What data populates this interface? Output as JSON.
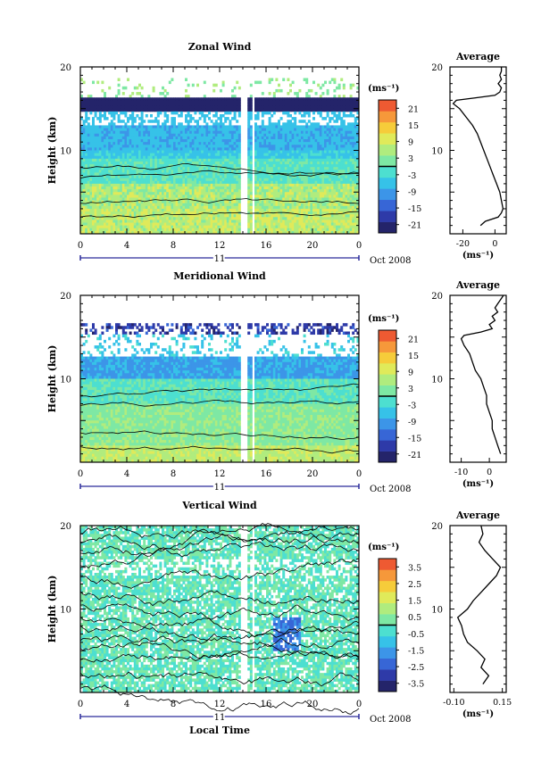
{
  "chart_data": [
    {
      "type": "heatmap",
      "title": "Zonal Wind",
      "ylabel": "Height (km)",
      "yticks": [
        "20",
        "10"
      ],
      "ylim": [
        0,
        20
      ],
      "xticks": [
        "0",
        "4",
        "8",
        "12",
        "16",
        "20",
        "0"
      ],
      "xlim": [
        0,
        24
      ],
      "date_center": "11",
      "date_label": "Oct 2008",
      "colorbar": {
        "unit": "(ms⁻¹)",
        "ticks": [
          "21",
          "15",
          "9",
          "3",
          "-3",
          "-9",
          "-15",
          "-21"
        ],
        "range": [
          -24,
          24
        ]
      },
      "profile": {
        "title": "Average",
        "unit": "(ms⁻¹)",
        "xticks": [
          "-20",
          "0"
        ],
        "xlim": [
          -28,
          7
        ],
        "yticks": [
          "20",
          "10"
        ],
        "points": [
          [
            -9,
            1.0
          ],
          [
            -6,
            1.5
          ],
          [
            2,
            2
          ],
          [
            4,
            2.5
          ],
          [
            5,
            3
          ],
          [
            4,
            4
          ],
          [
            3,
            5
          ],
          [
            1,
            6
          ],
          [
            -1,
            7
          ],
          [
            -3,
            8
          ],
          [
            -5,
            9
          ],
          [
            -7,
            10
          ],
          [
            -9,
            11
          ],
          [
            -11,
            12
          ],
          [
            -14,
            13
          ],
          [
            -18,
            14
          ],
          [
            -22,
            15
          ],
          [
            -26,
            15.6
          ],
          [
            -24,
            16
          ],
          [
            -12,
            16.3
          ],
          [
            0,
            16.6
          ],
          [
            3,
            17
          ],
          [
            4,
            17.5
          ],
          [
            2,
            18
          ],
          [
            4,
            18.5
          ],
          [
            3,
            19
          ],
          [
            4,
            19.5
          ],
          [
            4,
            20
          ]
        ]
      }
    },
    {
      "type": "heatmap",
      "title": "Meridional Wind",
      "ylabel": "Height (km)",
      "yticks": [
        "20",
        "10"
      ],
      "ylim": [
        0,
        20
      ],
      "xticks": [
        "0",
        "4",
        "8",
        "12",
        "16",
        "20",
        "0"
      ],
      "xlim": [
        0,
        24
      ],
      "date_center": "11",
      "date_label": "Oct 2008",
      "colorbar": {
        "unit": "(ms⁻¹)",
        "ticks": [
          "21",
          "15",
          "9",
          "3",
          "-3",
          "-9",
          "-15",
          "-21"
        ],
        "range": [
          -24,
          24
        ]
      },
      "profile": {
        "title": "Average",
        "unit": "(ms⁻¹)",
        "xticks": [
          "-10",
          "0"
        ],
        "xlim": [
          -14,
          6
        ],
        "yticks": [
          "20",
          "10"
        ],
        "points": [
          [
            4,
            1
          ],
          [
            3,
            2
          ],
          [
            2,
            3
          ],
          [
            1,
            4
          ],
          [
            1,
            5
          ],
          [
            0,
            6
          ],
          [
            -1,
            7
          ],
          [
            -1,
            8
          ],
          [
            -2,
            9
          ],
          [
            -3,
            10
          ],
          [
            -5,
            11
          ],
          [
            -6,
            12
          ],
          [
            -7,
            13
          ],
          [
            -9,
            14
          ],
          [
            -10,
            14.8
          ],
          [
            -9,
            15.2
          ],
          [
            -3,
            15.6
          ],
          [
            1,
            16
          ],
          [
            0,
            16.5
          ],
          [
            2,
            17
          ],
          [
            1,
            17.5
          ],
          [
            3,
            18
          ],
          [
            2,
            18.5
          ],
          [
            3,
            19
          ],
          [
            4,
            19.5
          ],
          [
            5,
            20
          ]
        ]
      }
    },
    {
      "type": "heatmap",
      "title": "Vertical Wind",
      "ylabel": "Height (km)",
      "xlabel": "Local Time",
      "yticks": [
        "20",
        "10"
      ],
      "ylim": [
        0,
        20
      ],
      "xticks": [
        "0",
        "4",
        "8",
        "12",
        "16",
        "20",
        "0"
      ],
      "xlim": [
        0,
        24
      ],
      "date_center": "11",
      "date_label": "Oct 2008",
      "colorbar": {
        "unit": "(ms⁻¹)",
        "ticks": [
          "3.5",
          "2.5",
          "1.5",
          "0.5",
          "-0.5",
          "-1.5",
          "-2.5",
          "-3.5"
        ],
        "range": [
          -4,
          4
        ]
      },
      "profile": {
        "title": "Average",
        "unit": "(ms⁻¹)",
        "xticks": [
          "-0.10",
          "0.15"
        ],
        "xlim": [
          -0.12,
          0.17
        ],
        "yticks": [
          "20",
          "10"
        ],
        "points": [
          [
            0.05,
            1
          ],
          [
            0.08,
            2
          ],
          [
            0.04,
            3
          ],
          [
            0.06,
            4
          ],
          [
            0.02,
            5
          ],
          [
            -0.03,
            6
          ],
          [
            -0.05,
            7
          ],
          [
            -0.06,
            8
          ],
          [
            -0.08,
            9
          ],
          [
            -0.03,
            10
          ],
          [
            0.0,
            11
          ],
          [
            0.04,
            12
          ],
          [
            0.08,
            13
          ],
          [
            0.12,
            14
          ],
          [
            0.14,
            15
          ],
          [
            0.1,
            16
          ],
          [
            0.06,
            17
          ],
          [
            0.03,
            18
          ],
          [
            0.05,
            19
          ],
          [
            0.04,
            20
          ]
        ]
      }
    }
  ]
}
